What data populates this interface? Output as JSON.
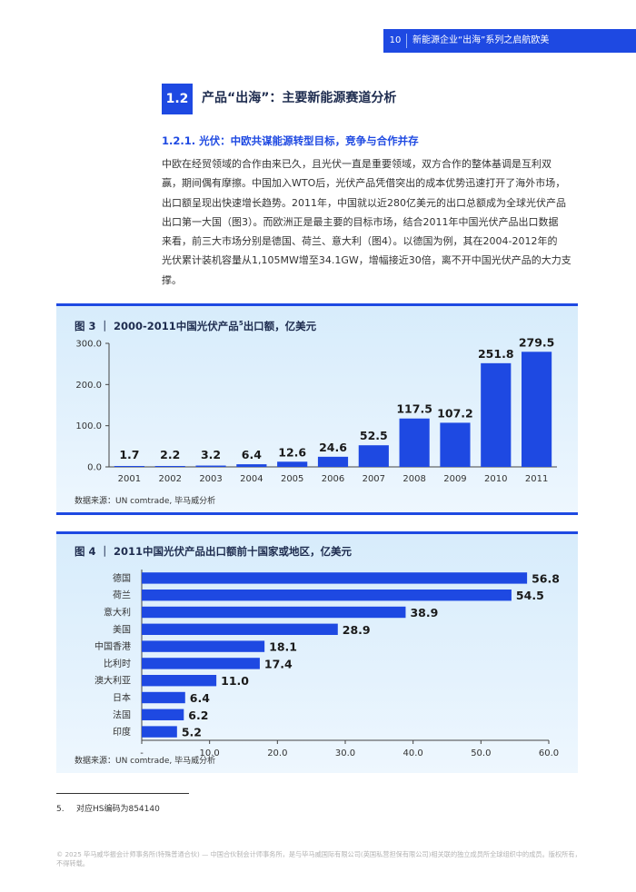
{
  "header": {
    "page_number": "10",
    "title": "新能源企业“出海”系列之启航欧美"
  },
  "section": {
    "number": "1.2",
    "title": "产品“出海”：主要新能源赛道分析",
    "subsection": "1.2.1. 光伏：中欧共谋能源转型目标，竞争与合作并存"
  },
  "paragraph": [
    "中欧在经贸领域的合作由来已久，且光伏一直是重要领域，双方合作的整体基调是互利双",
    "赢，期间偶有摩擦。中国加入WTO后，光伏产品凭借突出的成本优势迅速打开了海外市场，",
    "出口额呈现出快速增长趋势。2011年，中国就以近280亿美元的出口总额成为全球光伏产品",
    "出口第一大国（图3）。而欧洲正是最主要的目标市场，结合2011年中国光伏产品出口数据",
    "来看，前三大市场分别是德国、荷兰、意大利（图4）。以德国为例，其在2004-2012年的",
    "光伏累计装机容量从1,105MW增至34.1GW，增幅接近30倍，离不开中国光伏产品的大力支",
    "撑。"
  ],
  "figure3": {
    "title_main": "图 3 ｜ 2000-2011中国光伏产品",
    "title_sup": "5",
    "title_tail": "出口额，亿美元",
    "source": "数据来源：UN comtrade, 毕马威分析"
  },
  "figure4": {
    "title": "图 4 ｜ 2011中国光伏产品出口额前十国家或地区，亿美元",
    "source": "数据来源：UN comtrade, 毕马威分析"
  },
  "chart_data": [
    {
      "type": "bar",
      "orientation": "vertical",
      "categories": [
        "2001",
        "2002",
        "2003",
        "2004",
        "2005",
        "2006",
        "2007",
        "2008",
        "2009",
        "2010",
        "2011"
      ],
      "values": [
        1.7,
        2.2,
        3.2,
        6.4,
        12.6,
        24.6,
        52.5,
        117.5,
        107.2,
        251.8,
        279.5
      ],
      "labels": [
        "1.7",
        "2.2",
        "3.2",
        "6.4",
        "12.6",
        "24.6",
        "52.5",
        "117.5",
        "107.2",
        "251.8",
        "279.5"
      ],
      "yticks": [
        "0.0",
        "100.0",
        "200.0",
        "300.0"
      ],
      "ylim": [
        0,
        300
      ],
      "color": "#1e49e2"
    },
    {
      "type": "bar",
      "orientation": "horizontal",
      "categories": [
        "德国",
        "荷兰",
        "意大利",
        "美国",
        "中国香港",
        "比利时",
        "澳大利亚",
        "日本",
        "法国",
        "印度"
      ],
      "values": [
        56.8,
        54.5,
        38.9,
        28.9,
        18.1,
        17.4,
        11.0,
        6.4,
        6.2,
        5.2
      ],
      "labels": [
        "56.8",
        "54.5",
        "38.9",
        "28.9",
        "18.1",
        "17.4",
        "11.0",
        "6.4",
        "6.2",
        "5.2"
      ],
      "xticks": [
        "-",
        "10.0",
        "20.0",
        "30.0",
        "40.0",
        "50.0",
        "60.0"
      ],
      "xlim": [
        0,
        60
      ],
      "color": "#1e49e2"
    }
  ],
  "footnote": {
    "number": "5.",
    "text": "对应HS编码为854140"
  },
  "copyright": "© 2025 毕马威华振会计师事务所(特殊普通合伙) — 中国合伙制会计师事务所，是与毕马威国际有限公司(英国私营担保有限公司)相关联的独立成员所全球组织中的成员。版权所有，不得转载。"
}
